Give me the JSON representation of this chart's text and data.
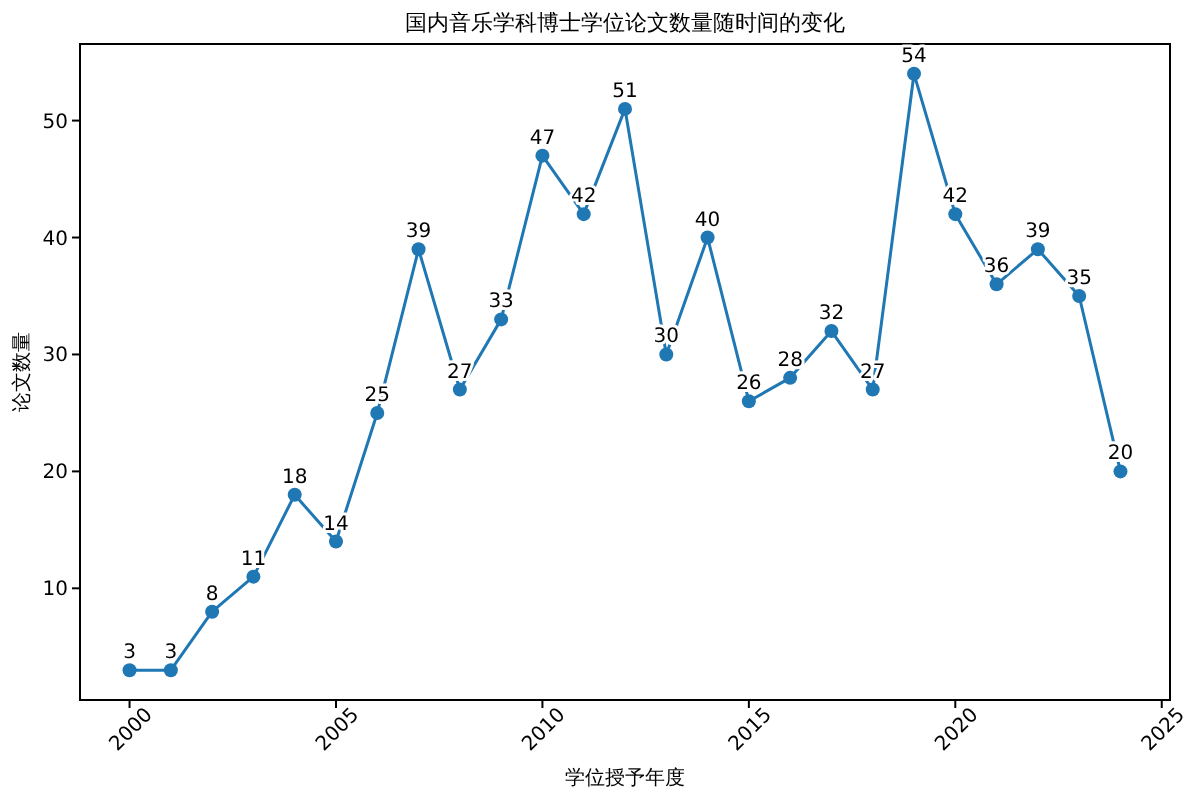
{
  "chart_data": {
    "type": "line",
    "title": "国内音乐学科博士学位论文数量随时间的变化",
    "xlabel": "学位授予年度",
    "ylabel": "论文数量",
    "x": [
      2000,
      2001,
      2002,
      2003,
      2004,
      2005,
      2006,
      2007,
      2008,
      2009,
      2010,
      2011,
      2012,
      2013,
      2014,
      2015,
      2016,
      2017,
      2018,
      2019,
      2020,
      2021,
      2022,
      2023,
      2024
    ],
    "series": [
      {
        "color": "#1f77b4",
        "values": [
          3,
          3,
          8,
          11,
          18,
          14,
          25,
          39,
          27,
          33,
          47,
          42,
          51,
          30,
          40,
          26,
          28,
          32,
          27,
          54,
          42,
          36,
          39,
          35,
          20
        ]
      }
    ],
    "xlim": [
      1998.8,
      2025.2
    ],
    "xticks": [
      2000,
      2005,
      2010,
      2015,
      2020,
      2025
    ],
    "ylim": [
      0.45,
      56.55
    ],
    "yticks": [
      10,
      20,
      30,
      40,
      50
    ],
    "marker": "circle",
    "data_labels": true,
    "grid": false
  }
}
